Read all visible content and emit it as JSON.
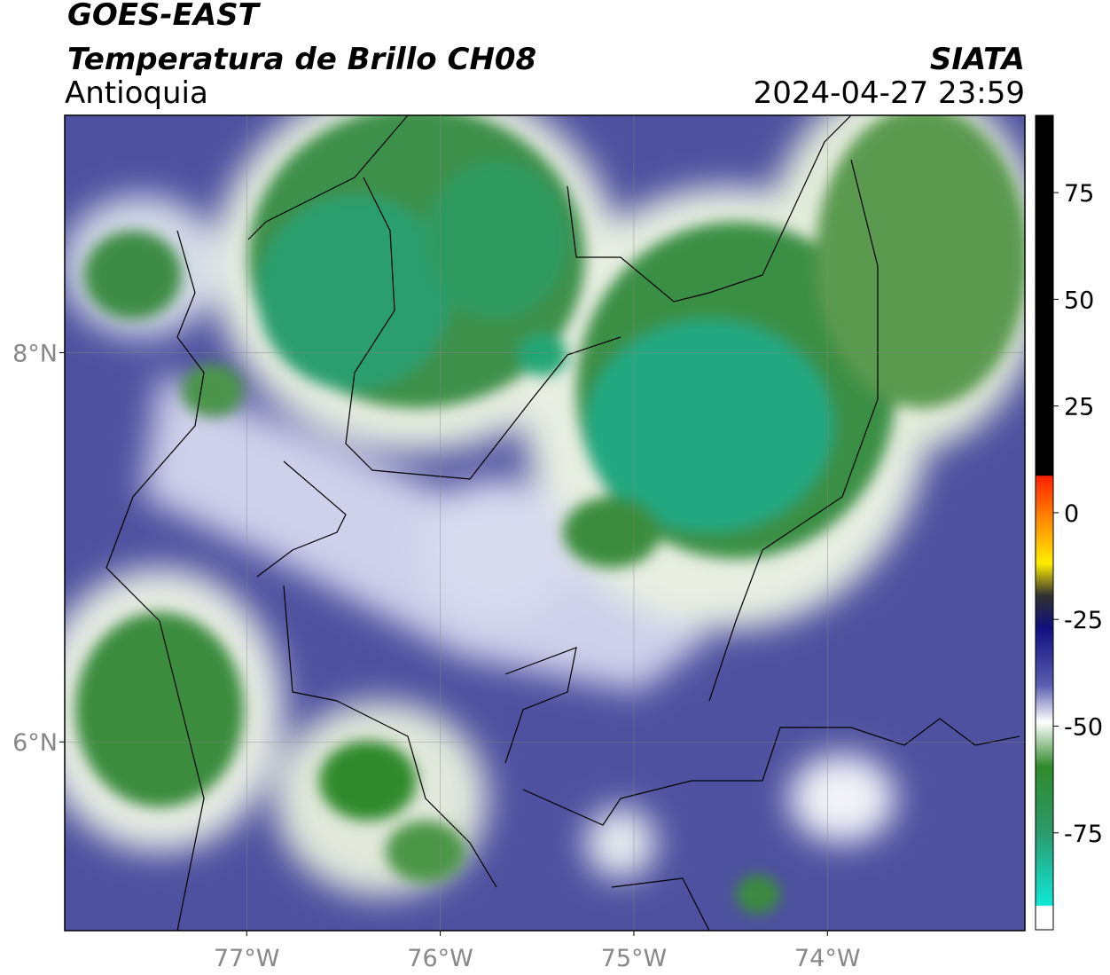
{
  "header": {
    "title": "GOES-EAST",
    "subtitle": "Temperatura de Brillo CH08",
    "region": "Antioquia",
    "source": "SIATA",
    "datetime": "2024-04-27 23:59"
  },
  "map": {
    "xlim": [
      -77.94,
      -72.98
    ],
    "ylim": [
      5.03,
      9.22
    ],
    "xticks": [
      {
        "value": -77,
        "label": "77°W"
      },
      {
        "value": -76,
        "label": "76°W"
      },
      {
        "value": -75,
        "label": "75°W"
      },
      {
        "value": -74,
        "label": "74°W"
      }
    ],
    "yticks": [
      {
        "value": 6,
        "label": "6°N"
      },
      {
        "value": 8,
        "label": "8°N"
      }
    ],
    "grid": true
  },
  "colorbar": {
    "lim": [
      -97.7,
      93.1
    ],
    "ticks": [
      75,
      50,
      25,
      0,
      -25,
      -50,
      -75
    ]
  }
}
